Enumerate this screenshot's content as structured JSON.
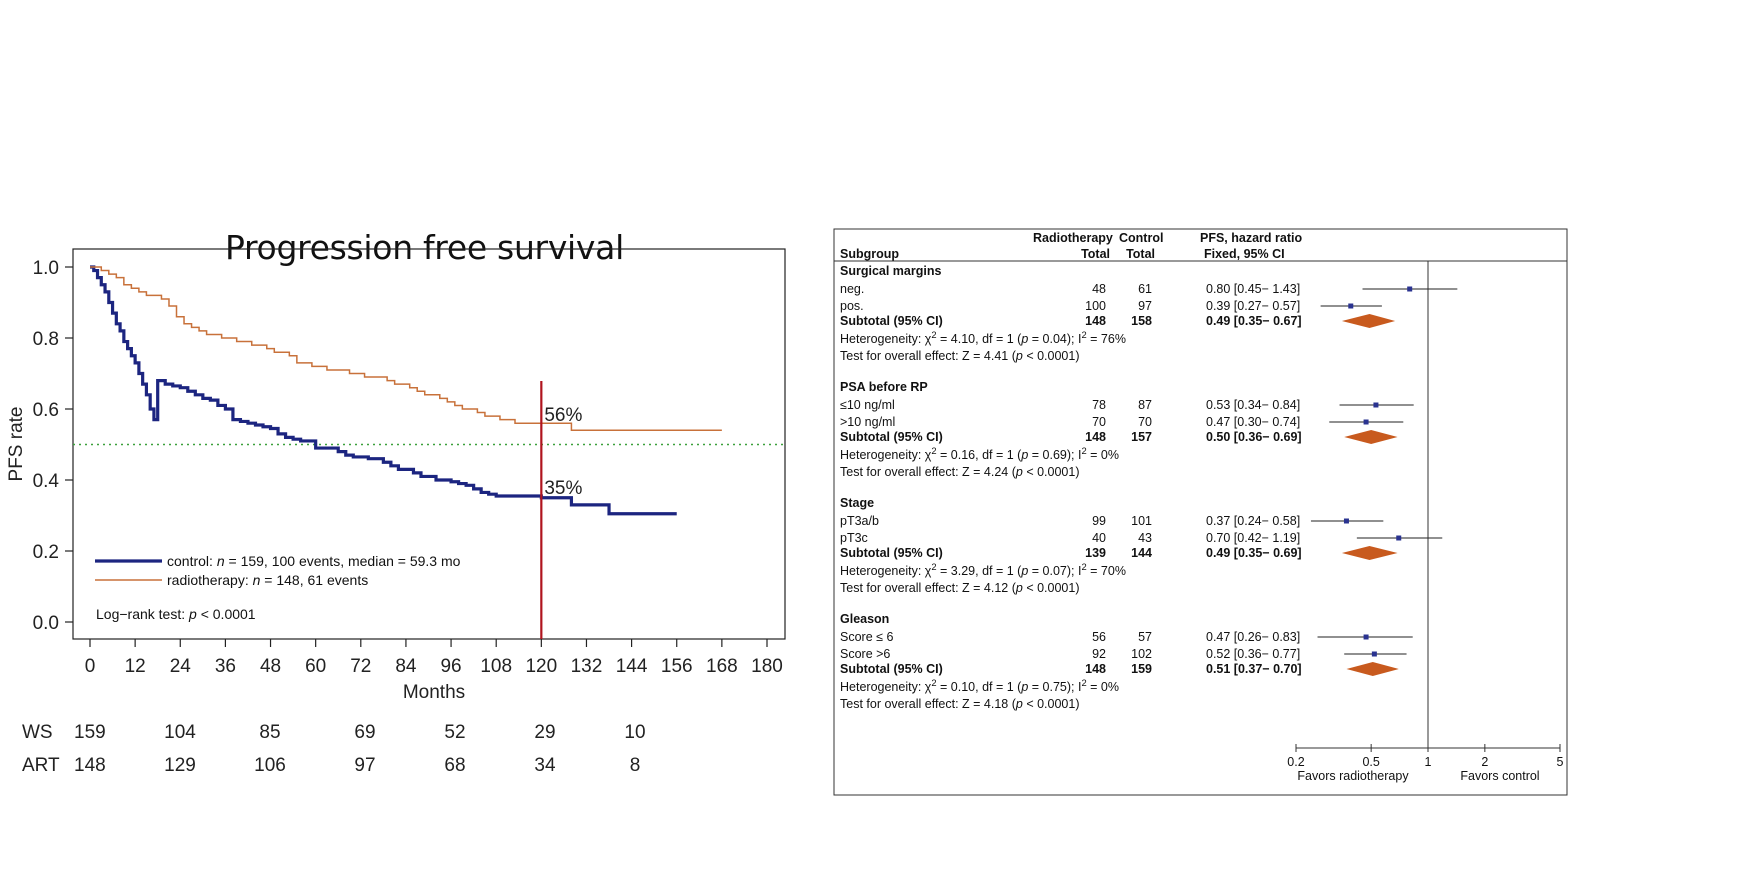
{
  "chart_data": [
    {
      "type": "line",
      "title": "Progression free survival",
      "xlabel": "Months",
      "ylabel": "PFS rate",
      "xlim": [
        0,
        180
      ],
      "ylim": [
        0,
        1
      ],
      "x_ticks": [
        "0",
        "12",
        "24",
        "36",
        "48",
        "60",
        "72",
        "84",
        "96",
        "108",
        "120",
        "132",
        "144",
        "156",
        "168",
        "180"
      ],
      "y_ticks": [
        "0.0",
        "0.2",
        "0.4",
        "0.6",
        "0.8",
        "1.0"
      ],
      "series": [
        {
          "name": "control",
          "legend": "control: n = 159, 100 events, median = 59.3 mo",
          "color": "#1c2580",
          "x": [
            0,
            1,
            2,
            3,
            4,
            5,
            6,
            7,
            8,
            9,
            10,
            11,
            12,
            13,
            14,
            15,
            16,
            17,
            18,
            20,
            22,
            24,
            26,
            28,
            30,
            32,
            34,
            36,
            38,
            40,
            42,
            44,
            46,
            48,
            50,
            52,
            54,
            56,
            58,
            60,
            64,
            66,
            68,
            70,
            74,
            78,
            80,
            82,
            86,
            88,
            92,
            96,
            98,
            100,
            102,
            104,
            106,
            108,
            120,
            128,
            138,
            156
          ],
          "y": [
            1.0,
            0.99,
            0.97,
            0.95,
            0.93,
            0.9,
            0.87,
            0.84,
            0.82,
            0.79,
            0.77,
            0.75,
            0.73,
            0.7,
            0.67,
            0.64,
            0.6,
            0.57,
            0.68,
            0.67,
            0.665,
            0.66,
            0.65,
            0.64,
            0.63,
            0.625,
            0.61,
            0.6,
            0.57,
            0.565,
            0.56,
            0.555,
            0.55,
            0.545,
            0.53,
            0.52,
            0.515,
            0.51,
            0.51,
            0.49,
            0.49,
            0.48,
            0.47,
            0.465,
            0.46,
            0.45,
            0.44,
            0.43,
            0.42,
            0.41,
            0.4,
            0.395,
            0.39,
            0.385,
            0.375,
            0.365,
            0.36,
            0.355,
            0.35,
            0.33,
            0.305,
            0.305
          ]
        },
        {
          "name": "radiotherapy",
          "legend": "radiotherapy: n = 148, 61 events",
          "color": "#c8713a",
          "x": [
            0,
            3,
            5,
            7,
            9,
            11,
            13,
            15,
            17,
            19,
            21,
            23,
            25,
            27,
            29,
            31,
            33,
            35,
            37,
            39,
            41,
            43,
            45,
            47,
            49,
            53,
            55,
            57,
            59,
            61,
            63,
            65,
            69,
            71,
            73,
            77,
            79,
            81,
            85,
            87,
            89,
            93,
            95,
            97,
            99,
            103,
            105,
            107,
            109,
            113,
            128,
            168
          ],
          "y": [
            1.0,
            0.99,
            0.98,
            0.97,
            0.95,
            0.94,
            0.93,
            0.92,
            0.92,
            0.91,
            0.89,
            0.86,
            0.84,
            0.83,
            0.82,
            0.81,
            0.81,
            0.8,
            0.8,
            0.79,
            0.79,
            0.78,
            0.78,
            0.77,
            0.76,
            0.75,
            0.73,
            0.73,
            0.72,
            0.72,
            0.71,
            0.71,
            0.7,
            0.7,
            0.69,
            0.69,
            0.68,
            0.67,
            0.66,
            0.65,
            0.64,
            0.63,
            0.62,
            0.61,
            0.6,
            0.59,
            0.58,
            0.58,
            0.57,
            0.56,
            0.54,
            0.54
          ]
        }
      ],
      "reference_line": {
        "y": 0.5,
        "style": "dotted",
        "color": "#3ca03c"
      },
      "marker_line": {
        "x": 120,
        "color": "#b0141e"
      },
      "annotations": [
        "56%",
        "35%"
      ],
      "logrank": "Log−rank test: p < 0.0001",
      "risk_table": {
        "times": [
          0,
          24,
          48,
          72,
          96,
          120,
          144
        ],
        "rows": [
          {
            "label": "WS",
            "values": [
              "159",
              "104",
              "85",
              "69",
              "52",
              "29",
              "10"
            ]
          },
          {
            "label": "ART",
            "values": [
              "148",
              "129",
              "106",
              "97",
              "68",
              "34",
              "8"
            ]
          }
        ]
      }
    },
    {
      "type": "table",
      "title": "PFS, hazard ratio Fixed, 95% CI",
      "headers": {
        "subgroup": "Subgroup",
        "radiotherapy": "Radiotherapy",
        "control": "Control",
        "total": "Total",
        "effect_line1": "PFS, hazard ratio",
        "effect_line2": "Fixed, 95% CI"
      },
      "x_scale": "log",
      "xlim": [
        0.2,
        5
      ],
      "x_ticks": [
        "0.2",
        "0.5",
        "1",
        "2",
        "5"
      ],
      "favors_left": "Favors radiotherapy",
      "favors_right": "Favors control",
      "marker_color": "#2a3390",
      "diamond_color": "#c85a1e",
      "groups": [
        {
          "name": "Surgical margins",
          "rows": [
            {
              "label": "neg.",
              "rt": "48",
              "ctrl": "61",
              "ci_text": "0.80 [0.45− 1.43]",
              "hr": 0.8,
              "lo": 0.45,
              "hi": 1.43
            },
            {
              "label": "pos.",
              "rt": "100",
              "ctrl": "97",
              "ci_text": "0.39 [0.27− 0.57]",
              "hr": 0.39,
              "lo": 0.27,
              "hi": 0.57
            }
          ],
          "subtotal": {
            "label": "Subtotal (95% CI)",
            "rt": "148",
            "ctrl": "158",
            "ci_text": "0.49 [0.35− 0.67]",
            "hr": 0.49,
            "lo": 0.35,
            "hi": 0.67
          },
          "heterogeneity": "Heterogeneity: χ² = 4.10, df = 1 (p = 0.04); I² = 76%",
          "overall": "Test for overall effect: Z = 4.41 (p < 0.0001)"
        },
        {
          "name": "PSA before RP",
          "rows": [
            {
              "label": "≤10 ng/ml",
              "rt": "78",
              "ctrl": "87",
              "ci_text": "0.53 [0.34− 0.84]",
              "hr": 0.53,
              "lo": 0.34,
              "hi": 0.84
            },
            {
              "label": ">10 ng/ml",
              "rt": "70",
              "ctrl": "70",
              "ci_text": "0.47 [0.30− 0.74]",
              "hr": 0.47,
              "lo": 0.3,
              "hi": 0.74
            }
          ],
          "subtotal": {
            "label": "Subtotal (95% CI)",
            "rt": "148",
            "ctrl": "157",
            "ci_text": "0.50 [0.36− 0.69]",
            "hr": 0.5,
            "lo": 0.36,
            "hi": 0.69
          },
          "heterogeneity": "Heterogeneity: χ² = 0.16, df = 1 (p = 0.69); I² = 0%",
          "overall": "Test for overall effect: Z = 4.24 (p < 0.0001)"
        },
        {
          "name": "Stage",
          "rows": [
            {
              "label": "pT3a/b",
              "rt": "99",
              "ctrl": "101",
              "ci_text": "0.37 [0.24− 0.58]",
              "hr": 0.37,
              "lo": 0.24,
              "hi": 0.58
            },
            {
              "label": "pT3c",
              "rt": "40",
              "ctrl": "43",
              "ci_text": "0.70 [0.42− 1.19]",
              "hr": 0.7,
              "lo": 0.42,
              "hi": 1.19
            }
          ],
          "subtotal": {
            "label": "Subtotal (95% CI)",
            "rt": "139",
            "ctrl": "144",
            "ci_text": "0.49 [0.35− 0.69]",
            "hr": 0.49,
            "lo": 0.35,
            "hi": 0.69
          },
          "heterogeneity": "Heterogeneity: χ² = 3.29, df = 1 (p = 0.07); I² = 70%",
          "overall": "Test for overall effect: Z = 4.12 (p < 0.0001)"
        },
        {
          "name": "Gleason",
          "rows": [
            {
              "label": "Score ≤ 6",
              "rt": "56",
              "ctrl": "57",
              "ci_text": "0.47 [0.26− 0.83]",
              "hr": 0.47,
              "lo": 0.26,
              "hi": 0.83
            },
            {
              "label": "Score >6",
              "rt": "92",
              "ctrl": "102",
              "ci_text": "0.52 [0.36− 0.77]",
              "hr": 0.52,
              "lo": 0.36,
              "hi": 0.77
            }
          ],
          "subtotal": {
            "label": "Subtotal (95% CI)",
            "rt": "148",
            "ctrl": "159",
            "ci_text": "0.51 [0.37− 0.70]",
            "hr": 0.51,
            "lo": 0.37,
            "hi": 0.7
          },
          "heterogeneity": "Heterogeneity: χ² = 0.10, df = 1 (p = 0.75); I² = 0%",
          "overall": "Test for overall effect: Z = 4.18 (p < 0.0001)"
        }
      ]
    }
  ]
}
